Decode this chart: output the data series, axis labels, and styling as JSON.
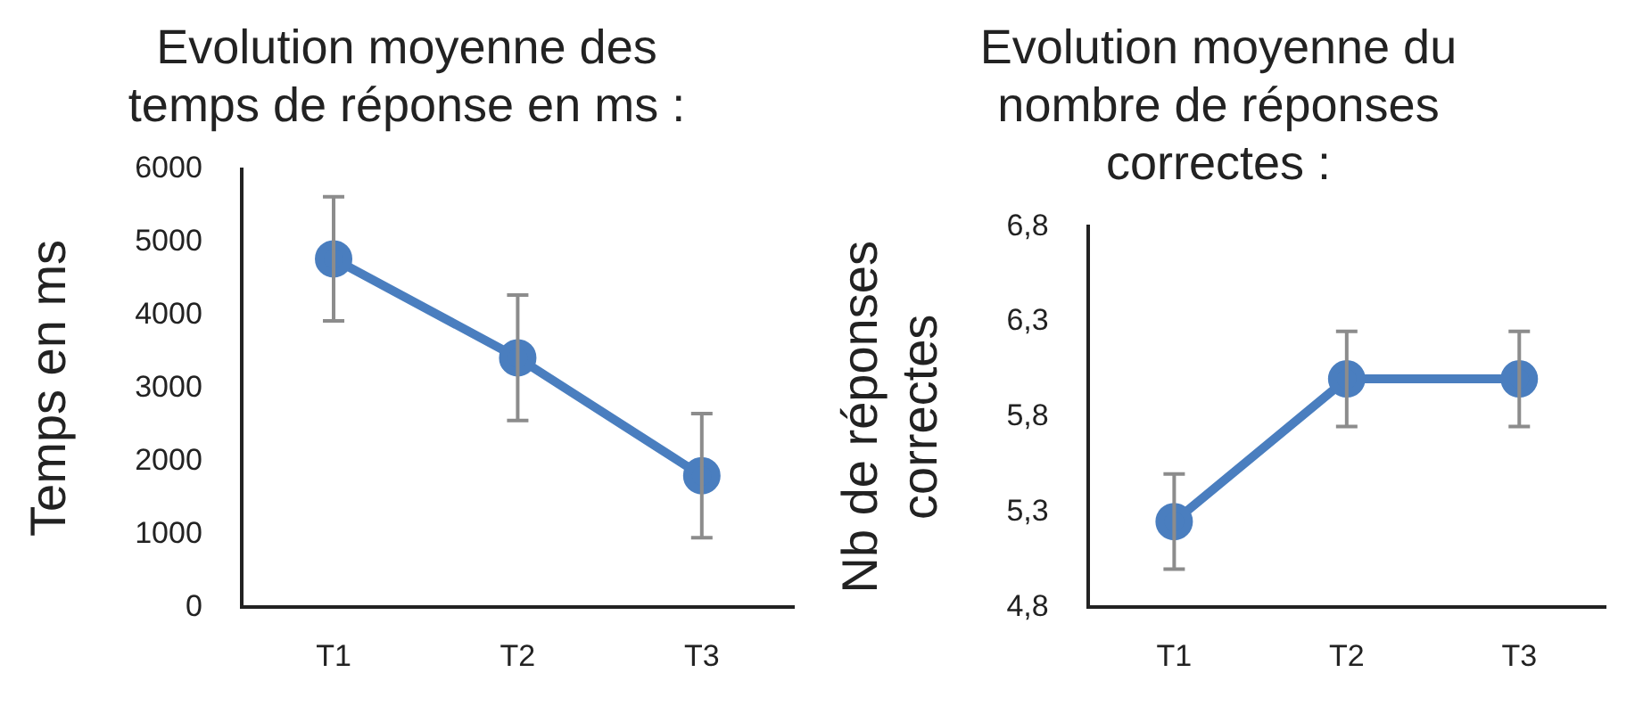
{
  "chart_data": [
    {
      "type": "line",
      "title": "Evolution moyenne des temps de réponse en ms :",
      "ylabel": "Temps en ms",
      "categories": [
        "T1",
        "T2",
        "T3"
      ],
      "series": [
        {
          "color": "#4a7ebf",
          "values": [
            4770,
            3415,
            1800
          ],
          "errors": [
            850,
            860,
            850
          ]
        }
      ],
      "ylim": [
        0,
        6000
      ],
      "yticks": [
        0,
        1000,
        2000,
        3000,
        4000,
        5000,
        6000
      ],
      "grid": false,
      "legend": false,
      "marker": "circle",
      "line_style": "solid"
    },
    {
      "type": "line",
      "title": "Evolution moyenne du nombre de réponses correctes :",
      "ylabel": "Nb de réponses correctes",
      "categories": [
        "T1",
        "T2",
        "T3"
      ],
      "series": [
        {
          "color": "#4a7ebf",
          "values": [
            5.25,
            6.0,
            6.0
          ],
          "errors": [
            0.25,
            0.25,
            0.25
          ]
        }
      ],
      "ylim": [
        4.8,
        6.8
      ],
      "yticks": [
        {
          "value": 4.8,
          "label": "4,8"
        },
        {
          "value": 5.3,
          "label": "5,3"
        },
        {
          "value": 5.8,
          "label": "5,8"
        },
        {
          "value": 6.3,
          "label": "6,3"
        },
        {
          "value": 6.8,
          "label": "6,8"
        }
      ],
      "grid": false,
      "legend": false,
      "marker": "circle",
      "line_style": "solid"
    }
  ]
}
